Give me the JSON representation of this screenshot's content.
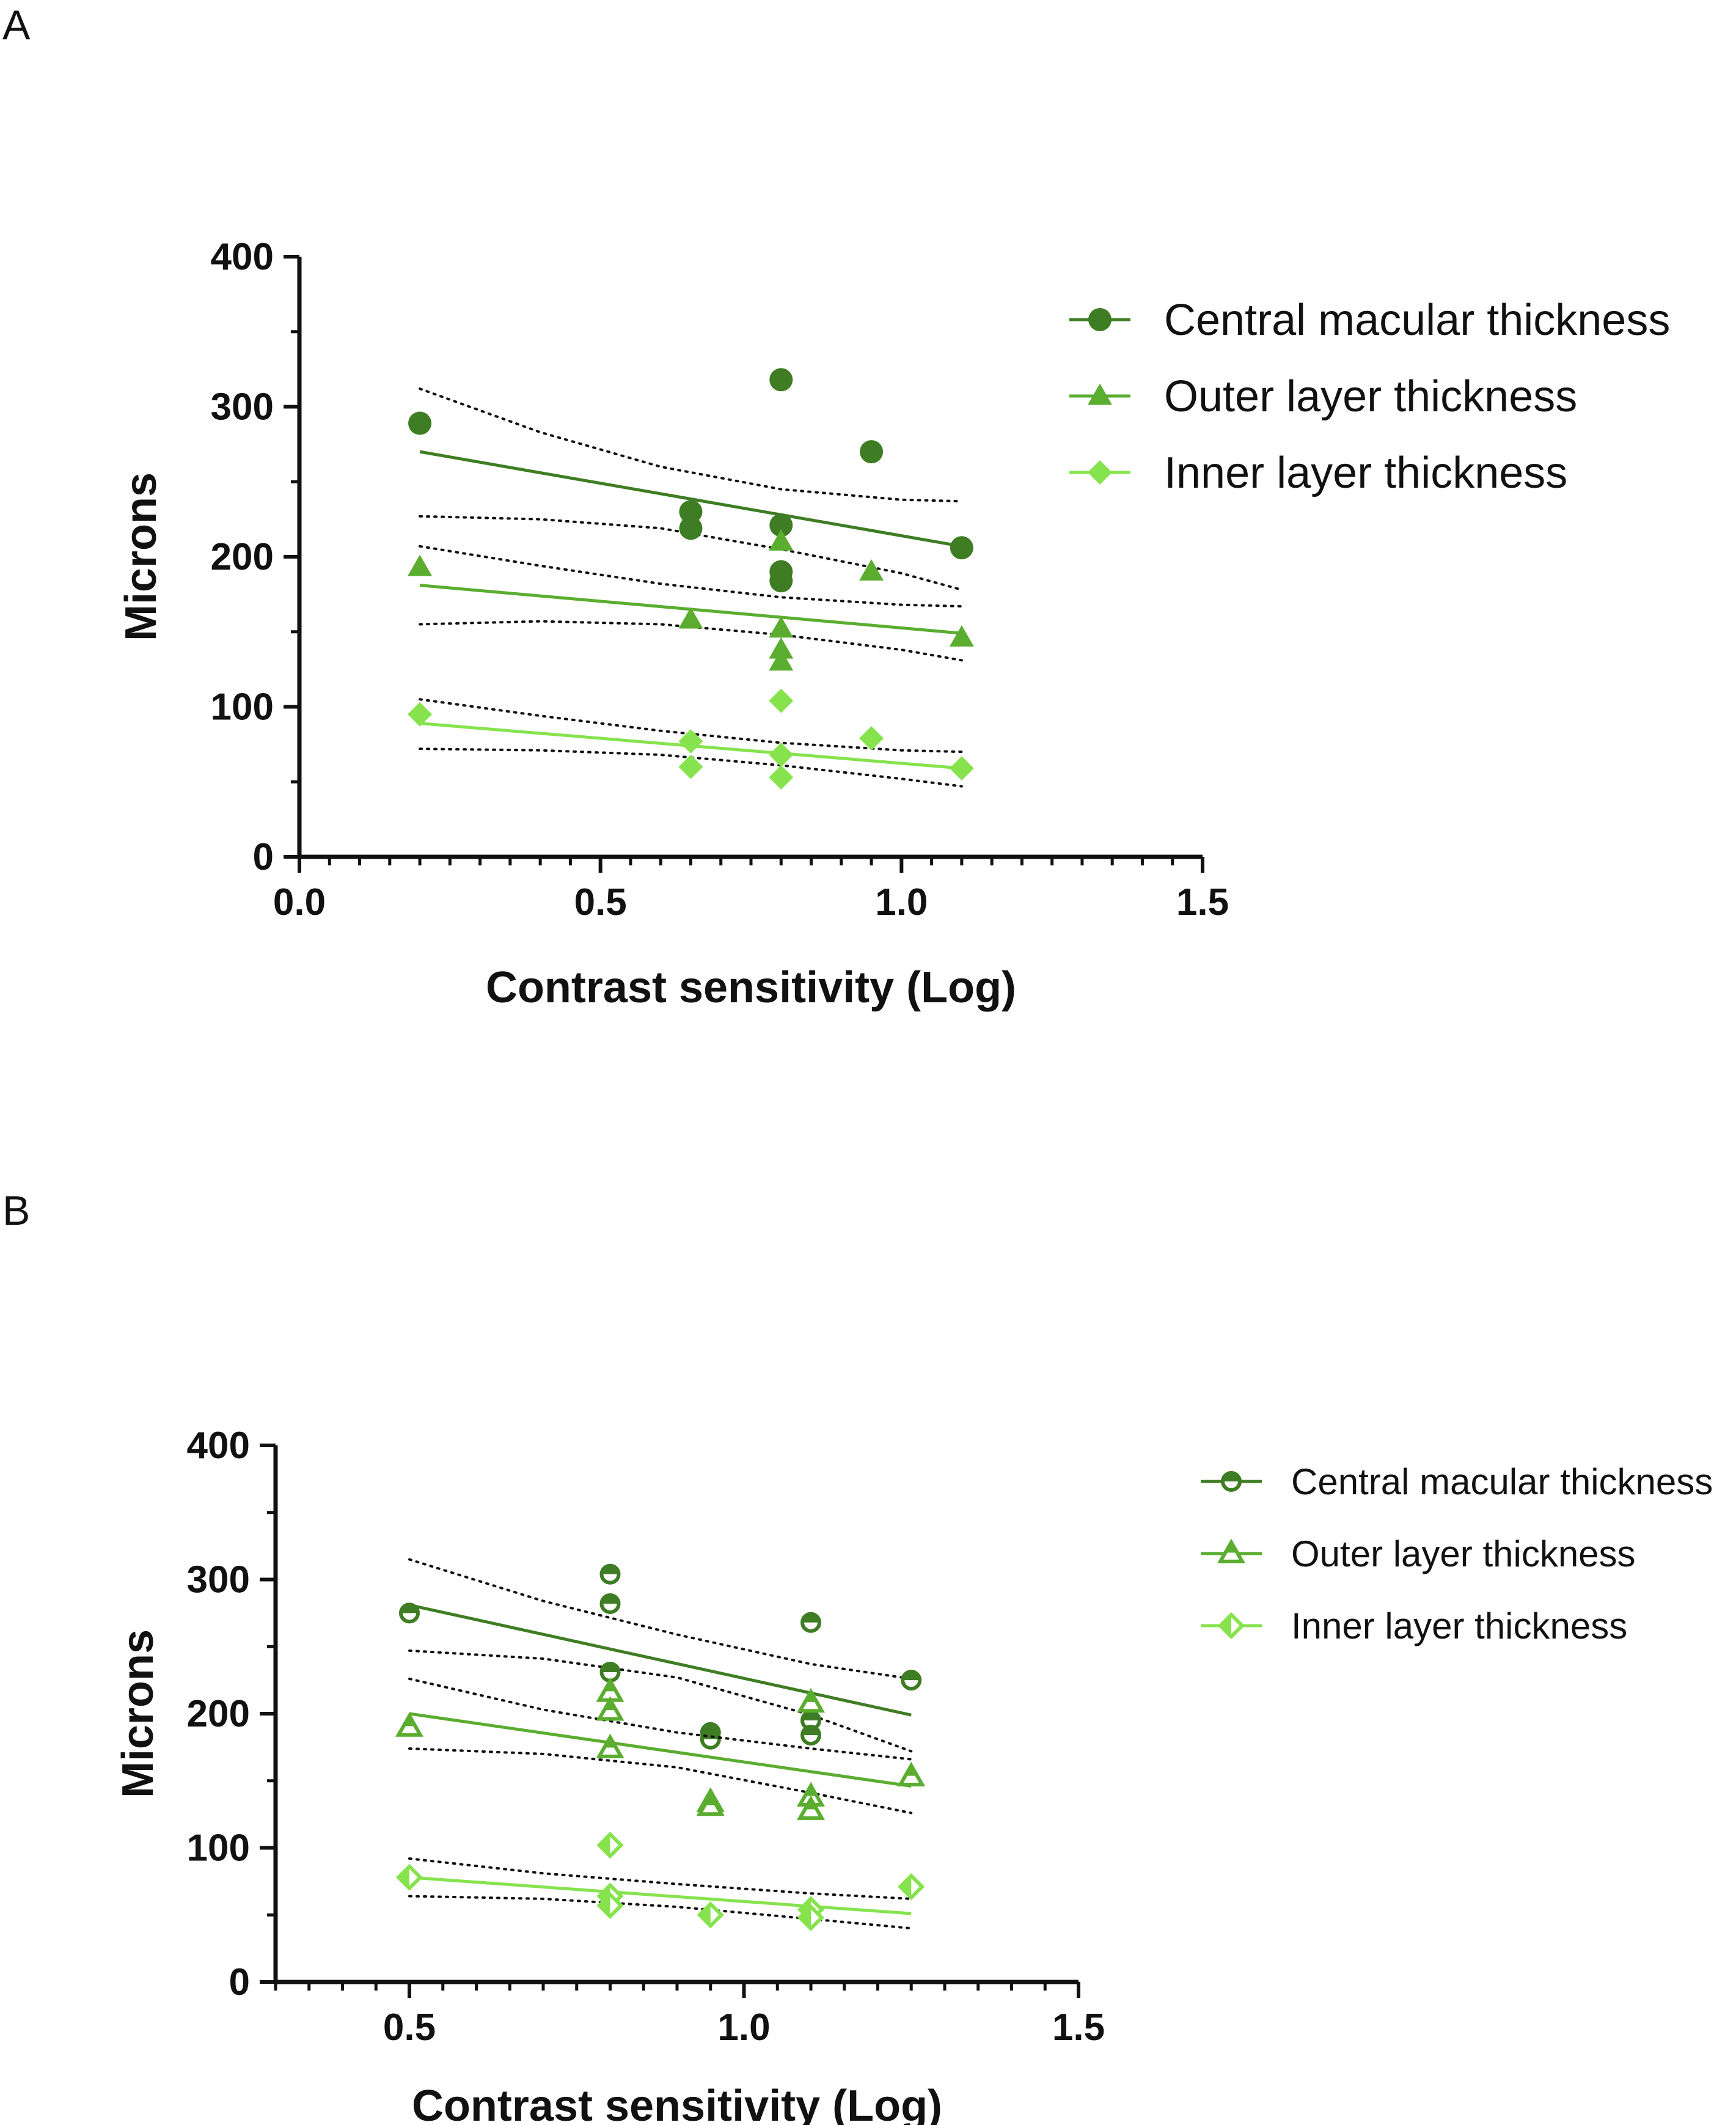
{
  "panels": {
    "a": {
      "label": "A"
    },
    "b": {
      "label": "B"
    }
  },
  "chart_data": [
    {
      "type": "scatter",
      "panel": "A",
      "xlabel": "Contrast sensitivity (Log)",
      "ylabel": "Microns",
      "xlim": [
        0.0,
        1.5
      ],
      "ylim": [
        0,
        400
      ],
      "xticks": [
        "0.0",
        "0.5",
        "1.0",
        "1.5"
      ],
      "yticks": [
        "0",
        "100",
        "200",
        "300",
        "400"
      ],
      "legend_position": "right",
      "series": [
        {
          "name": "Central macular thickness",
          "marker": "circle-filled",
          "color": "#3e7d23",
          "points": [
            [
              0.2,
              289
            ],
            [
              0.65,
              230
            ],
            [
              0.65,
              219
            ],
            [
              0.8,
              318
            ],
            [
              0.8,
              221
            ],
            [
              0.8,
              190
            ],
            [
              0.8,
              184
            ],
            [
              0.95,
              270
            ],
            [
              1.1,
              206
            ]
          ],
          "fit": {
            "x": [
              0.2,
              1.1
            ],
            "y": [
              270,
              207
            ]
          },
          "ci_upper": [
            [
              0.2,
              312
            ],
            [
              0.4,
              283
            ],
            [
              0.6,
              260
            ],
            [
              0.8,
              245
            ],
            [
              1.0,
              238
            ],
            [
              1.1,
              237
            ]
          ],
          "ci_lower": [
            [
              0.2,
              227
            ],
            [
              0.4,
              225
            ],
            [
              0.6,
              219
            ],
            [
              0.8,
              205
            ],
            [
              1.0,
              189
            ],
            [
              1.1,
              178
            ]
          ]
        },
        {
          "name": "Outer layer thickness",
          "marker": "triangle-filled",
          "color": "#5aad2f",
          "points": [
            [
              0.2,
              193
            ],
            [
              0.65,
              158
            ],
            [
              0.8,
              210
            ],
            [
              0.8,
              152
            ],
            [
              0.8,
              138
            ],
            [
              0.8,
              130
            ],
            [
              0.95,
              190
            ],
            [
              1.1,
              146
            ]
          ],
          "fit": {
            "x": [
              0.2,
              1.1
            ],
            "y": [
              181,
              149
            ]
          },
          "ci_upper": [
            [
              0.2,
              207
            ],
            [
              0.4,
              194
            ],
            [
              0.6,
              182
            ],
            [
              0.8,
              173
            ],
            [
              1.0,
              168
            ],
            [
              1.1,
              167
            ]
          ],
          "ci_lower": [
            [
              0.2,
              155
            ],
            [
              0.4,
              157
            ],
            [
              0.6,
              155
            ],
            [
              0.8,
              148
            ],
            [
              1.0,
              138
            ],
            [
              1.1,
              131
            ]
          ]
        },
        {
          "name": "Inner layer thickness",
          "marker": "diamond-filled",
          "color": "#86e34d",
          "points": [
            [
              0.2,
              95
            ],
            [
              0.65,
              77
            ],
            [
              0.65,
              60
            ],
            [
              0.8,
              104
            ],
            [
              0.8,
              68
            ],
            [
              0.8,
              53
            ],
            [
              0.95,
              79
            ],
            [
              1.1,
              59
            ]
          ],
          "fit": {
            "x": [
              0.2,
              1.1
            ],
            "y": [
              89,
              59
            ]
          },
          "ci_upper": [
            [
              0.2,
              105
            ],
            [
              0.4,
              94
            ],
            [
              0.6,
              84
            ],
            [
              0.8,
              76
            ],
            [
              1.0,
              71
            ],
            [
              1.1,
              70
            ]
          ],
          "ci_lower": [
            [
              0.2,
              72
            ],
            [
              0.4,
              71
            ],
            [
              0.6,
              68
            ],
            [
              0.8,
              61
            ],
            [
              1.0,
              52
            ],
            [
              1.1,
              47
            ]
          ]
        }
      ]
    },
    {
      "type": "scatter",
      "panel": "B",
      "xlabel": "Contrast sensitivity (Log)",
      "ylabel": "Microns",
      "xlim": [
        0.3,
        1.5
      ],
      "ylim": [
        0,
        400
      ],
      "xticks": [
        "0.5",
        "1.0",
        "1.5"
      ],
      "yticks": [
        "0",
        "100",
        "200",
        "300",
        "400"
      ],
      "legend_position": "right",
      "series": [
        {
          "name": "Central macular thickness",
          "marker": "circle-half",
          "color": "#3e7d23",
          "points": [
            [
              0.5,
              275
            ],
            [
              0.8,
              304
            ],
            [
              0.8,
              282
            ],
            [
              0.8,
              231
            ],
            [
              0.95,
              186
            ],
            [
              0.95,
              181
            ],
            [
              1.1,
              268
            ],
            [
              1.1,
              195
            ],
            [
              1.1,
              184
            ],
            [
              1.25,
              225
            ]
          ],
          "fit": {
            "x": [
              0.5,
              1.25
            ],
            "y": [
              281,
              199
            ]
          },
          "ci_upper": [
            [
              0.5,
              315
            ],
            [
              0.7,
              284
            ],
            [
              0.9,
              259
            ],
            [
              1.1,
              237
            ],
            [
              1.25,
              226
            ]
          ],
          "ci_lower": [
            [
              0.5,
              247
            ],
            [
              0.7,
              241
            ],
            [
              0.9,
              227
            ],
            [
              1.1,
              199
            ],
            [
              1.25,
              172
            ]
          ]
        },
        {
          "name": "Outer layer thickness",
          "marker": "triangle-half",
          "color": "#5aad2f",
          "points": [
            [
              0.5,
              190
            ],
            [
              0.8,
              216
            ],
            [
              0.8,
              202
            ],
            [
              0.8,
              174
            ],
            [
              0.95,
              134
            ],
            [
              0.95,
              131
            ],
            [
              1.1,
              208
            ],
            [
              1.1,
              138
            ],
            [
              1.1,
              128
            ],
            [
              1.25,
              153
            ]
          ],
          "fit": {
            "x": [
              0.5,
              1.25
            ],
            "y": [
              200,
              146
            ]
          },
          "ci_upper": [
            [
              0.5,
              226
            ],
            [
              0.7,
              203
            ],
            [
              0.9,
              186
            ],
            [
              1.1,
              174
            ],
            [
              1.25,
              166
            ]
          ],
          "ci_lower": [
            [
              0.5,
              174
            ],
            [
              0.7,
              170
            ],
            [
              0.9,
              160
            ],
            [
              1.1,
              141
            ],
            [
              1.25,
              126
            ]
          ]
        },
        {
          "name": "Inner layer thickness",
          "marker": "diamond-half",
          "color": "#86e34d",
          "points": [
            [
              0.5,
              78
            ],
            [
              0.8,
              102
            ],
            [
              0.8,
              64
            ],
            [
              0.8,
              57
            ],
            [
              0.95,
              50
            ],
            [
              1.1,
              54
            ],
            [
              1.1,
              48
            ],
            [
              1.25,
              71
            ]
          ],
          "fit": {
            "x": [
              0.5,
              1.25
            ],
            "y": [
              78,
              51
            ]
          },
          "ci_upper": [
            [
              0.5,
              92
            ],
            [
              0.7,
              81
            ],
            [
              0.9,
              73
            ],
            [
              1.1,
              66
            ],
            [
              1.25,
              62
            ]
          ],
          "ci_lower": [
            [
              0.5,
              64
            ],
            [
              0.7,
              62
            ],
            [
              0.9,
              56
            ],
            [
              1.1,
              47
            ],
            [
              1.25,
              40
            ]
          ]
        }
      ]
    }
  ]
}
